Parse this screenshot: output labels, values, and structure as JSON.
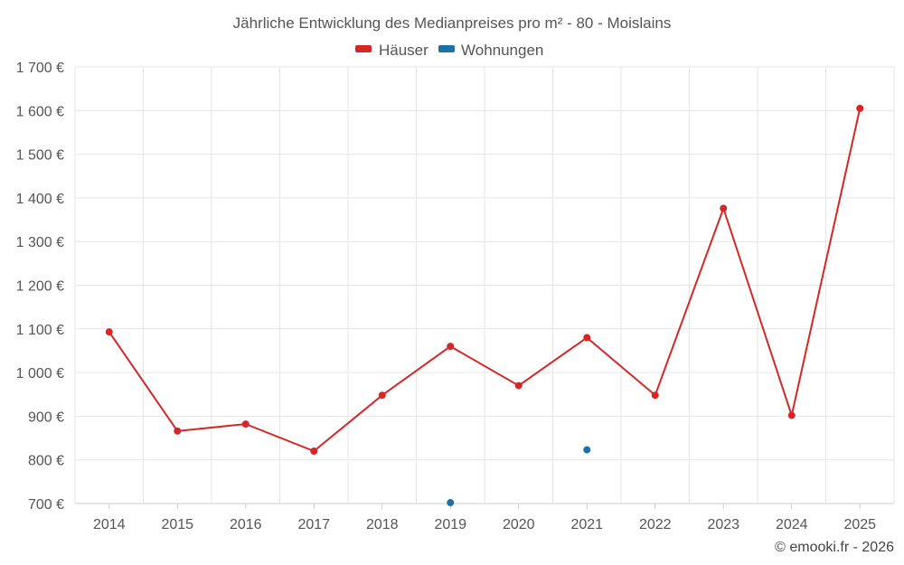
{
  "chart_data": {
    "type": "line",
    "title": "Jährliche Entwicklung des Medianpreises pro m² - 80 - Moislains",
    "categories": [
      "2014",
      "2015",
      "2016",
      "2017",
      "2018",
      "2019",
      "2020",
      "2021",
      "2022",
      "2023",
      "2024",
      "2025"
    ],
    "ylim": [
      700,
      1700
    ],
    "yticks": [
      700,
      800,
      900,
      1000,
      1100,
      1200,
      1300,
      1400,
      1500,
      1600,
      1700
    ],
    "ytick_labels": [
      "700 €",
      "800 €",
      "900 €",
      "1 000 €",
      "1 100 €",
      "1 200 €",
      "1 300 €",
      "1 400 €",
      "1 500 €",
      "1 600 €",
      "1 700 €"
    ],
    "grid": true,
    "legend_position": "top-center",
    "series": [
      {
        "name": "Häuser",
        "color": "#d62728",
        "values": [
          1093,
          866,
          882,
          820,
          948,
          1060,
          970,
          1080,
          948,
          1376,
          902,
          1605
        ]
      },
      {
        "name": "Wohnungen",
        "color": "#1f6fa8",
        "values": [
          null,
          null,
          null,
          null,
          null,
          702,
          null,
          823,
          null,
          null,
          null,
          null
        ]
      }
    ]
  },
  "credit": "© emooki.fr - 2026"
}
